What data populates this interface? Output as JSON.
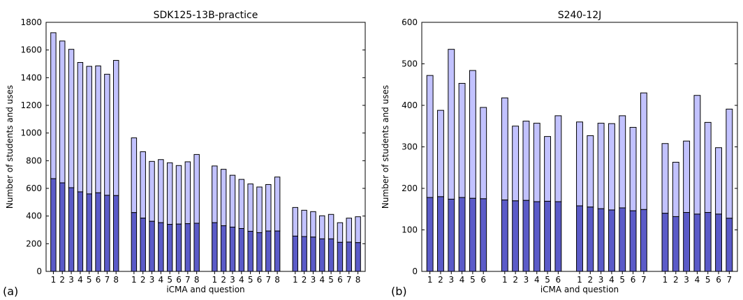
{
  "chart_data": [
    {
      "type": "bar",
      "panel_label": "(a)",
      "title": "SDK125-13B-practice",
      "xlabel": "iCMA and question",
      "ylabel": "Number of students and uses",
      "ylim": [
        0,
        1800
      ],
      "yticks": [
        0,
        200,
        400,
        600,
        800,
        1000,
        1200,
        1400,
        1600,
        1800
      ],
      "stacked": true,
      "colors": {
        "students": "#5b5bc8",
        "uses": "#c2c2ff"
      },
      "groups": [
        {
          "categories": [
            "1",
            "2",
            "3",
            "4",
            "5",
            "6",
            "7",
            "8"
          ],
          "students": [
            670,
            640,
            605,
            575,
            560,
            568,
            550,
            548
          ],
          "total": [
            1725,
            1665,
            1605,
            1510,
            1482,
            1485,
            1425,
            1525
          ]
        },
        {
          "categories": [
            "1",
            "2",
            "3",
            "4",
            "5",
            "6",
            "7",
            "8"
          ],
          "students": [
            425,
            385,
            362,
            352,
            340,
            342,
            345,
            348
          ],
          "total": [
            965,
            865,
            795,
            808,
            785,
            765,
            792,
            845
          ]
        },
        {
          "categories": [
            "1",
            "2",
            "3",
            "4",
            "5",
            "6",
            "7",
            "8"
          ],
          "students": [
            352,
            330,
            320,
            310,
            290,
            280,
            292,
            292
          ],
          "total": [
            762,
            738,
            695,
            665,
            632,
            610,
            628,
            682
          ]
        },
        {
          "categories": [
            "1",
            "2",
            "3",
            "4",
            "5",
            "6",
            "7",
            "8"
          ],
          "students": [
            255,
            252,
            248,
            235,
            235,
            210,
            212,
            208
          ],
          "total": [
            462,
            442,
            432,
            402,
            412,
            352,
            385,
            395
          ]
        }
      ]
    },
    {
      "type": "bar",
      "panel_label": "(b)",
      "title": "S240-12J",
      "xlabel": "iCMA and question",
      "ylabel": "Number of students and uses",
      "ylim": [
        0,
        600
      ],
      "yticks": [
        0,
        100,
        200,
        300,
        400,
        500,
        600
      ],
      "stacked": true,
      "colors": {
        "students": "#5b5bc8",
        "uses": "#c2c2ff"
      },
      "groups": [
        {
          "categories": [
            "1",
            "2",
            "3",
            "4",
            "5",
            "6"
          ],
          "students": [
            178,
            180,
            174,
            178,
            176,
            175
          ],
          "total": [
            472,
            388,
            535,
            453,
            484,
            395
          ]
        },
        {
          "categories": [
            "1",
            "2",
            "3",
            "4",
            "5",
            "6"
          ],
          "students": [
            172,
            170,
            171,
            168,
            169,
            168
          ],
          "total": [
            418,
            350,
            362,
            357,
            325,
            375
          ]
        },
        {
          "categories": [
            "1",
            "2",
            "3",
            "4",
            "5",
            "6",
            "7"
          ],
          "students": [
            158,
            155,
            151,
            148,
            153,
            146,
            149
          ],
          "total": [
            360,
            327,
            357,
            356,
            375,
            347,
            430
          ]
        },
        {
          "categories": [
            "1",
            "2",
            "3",
            "4",
            "5",
            "6",
            "7"
          ],
          "students": [
            140,
            132,
            142,
            138,
            142,
            138,
            128
          ],
          "total": [
            308,
            263,
            314,
            424,
            359,
            298,
            391
          ]
        }
      ]
    }
  ]
}
